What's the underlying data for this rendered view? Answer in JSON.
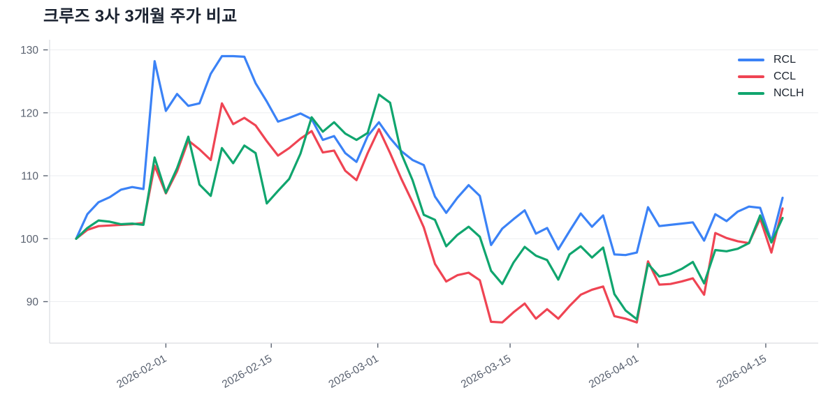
{
  "title": {
    "text": "크루즈 3사 3개월 주가 비교"
  },
  "chart_data": {
    "type": "line",
    "title": "크루즈 3사 3개월 주가 비교",
    "xlabel": "",
    "ylabel": "",
    "grid": "horizontal",
    "legend_position": "top-right",
    "x_axis": {
      "tick_labels": [
        "2026-02-01",
        "2026-02-15",
        "2026-03-01",
        "2026-03-15",
        "2026-04-01",
        "2026-04-15"
      ],
      "tick_indices": [
        8.0,
        17.4,
        26.9,
        38.7,
        50.1,
        61.5
      ]
    },
    "y_axis": {
      "ticks": [
        90,
        100,
        110,
        120,
        130
      ],
      "range": [
        83.4,
        131.6
      ]
    },
    "series": [
      {
        "name": "RCL",
        "color": "#3b82f6",
        "values": [
          100,
          103.9,
          105.8,
          106.6,
          107.8,
          108.2,
          107.9,
          128.2,
          120.3,
          123,
          121.1,
          121.5,
          126.2,
          129,
          129,
          128.9,
          124.7,
          121.8,
          118.6,
          119.2,
          119.9,
          119,
          115.7,
          116.3,
          113.6,
          112.2,
          116.3,
          118.5,
          116,
          113.9,
          112.5,
          111.7,
          106.7,
          104.1,
          106.5,
          108.5,
          106.8,
          99,
          101.6,
          103.1,
          104.5,
          100.8,
          101.7,
          98.3,
          101.2,
          104,
          101.9,
          103.7,
          97.5,
          97.4,
          97.8,
          105,
          102,
          102.2,
          102.4,
          102.6,
          99.7,
          103.9,
          102.8,
          104.3,
          105.1,
          104.9,
          99.6,
          106.5
        ]
      },
      {
        "name": "CCL",
        "color": "#ef4453",
        "values": [
          100,
          101.4,
          102,
          102.1,
          102.2,
          102.3,
          102.5,
          111.6,
          107.2,
          110.7,
          115.6,
          114.2,
          112.5,
          121.5,
          118.2,
          119.2,
          118,
          115.5,
          113.2,
          114.4,
          115.9,
          117.1,
          113.7,
          114,
          110.8,
          109.3,
          113.6,
          117.4,
          113.6,
          109.5,
          105.8,
          101.8,
          96,
          93.2,
          94.2,
          94.6,
          93.4,
          86.8,
          86.7,
          88.3,
          89.7,
          87.3,
          88.8,
          87.3,
          89.3,
          91.1,
          91.9,
          92.4,
          87.7,
          87.3,
          86.7,
          96.4,
          92.7,
          92.8,
          93.2,
          93.7,
          91.1,
          100.9,
          100.1,
          99.6,
          99.3,
          103.2,
          97.8,
          104.8
        ]
      },
      {
        "name": "NCLH",
        "color": "#10a56e",
        "values": [
          100,
          101.7,
          102.9,
          102.7,
          102.3,
          102.4,
          102.2,
          112.9,
          107.3,
          111.2,
          116.2,
          108.6,
          106.8,
          114.4,
          112,
          114.8,
          113.6,
          105.6,
          107.6,
          109.5,
          113.5,
          119.3,
          117,
          118.5,
          116.7,
          115.7,
          116.8,
          122.9,
          121.6,
          113.5,
          109.3,
          103.8,
          103,
          98.8,
          100.6,
          101.9,
          100.3,
          94.9,
          92.8,
          96.2,
          98.7,
          97.3,
          96.6,
          93.5,
          97.5,
          98.8,
          97,
          98.6,
          91.2,
          88.6,
          87.2,
          96,
          94,
          94.4,
          95.2,
          96.3,
          92.9,
          98.2,
          98,
          98.4,
          99.3,
          103.7,
          99.4,
          103.3
        ]
      }
    ]
  },
  "theme": {
    "background": "#ffffff",
    "grid_color": "#ebedf0",
    "axis_color": "#d9dce1",
    "tick_color": "#5a6270",
    "tick_label_color": "#5a6270",
    "title_color": "#1a2230",
    "legend_text_color": "#1c242f"
  }
}
